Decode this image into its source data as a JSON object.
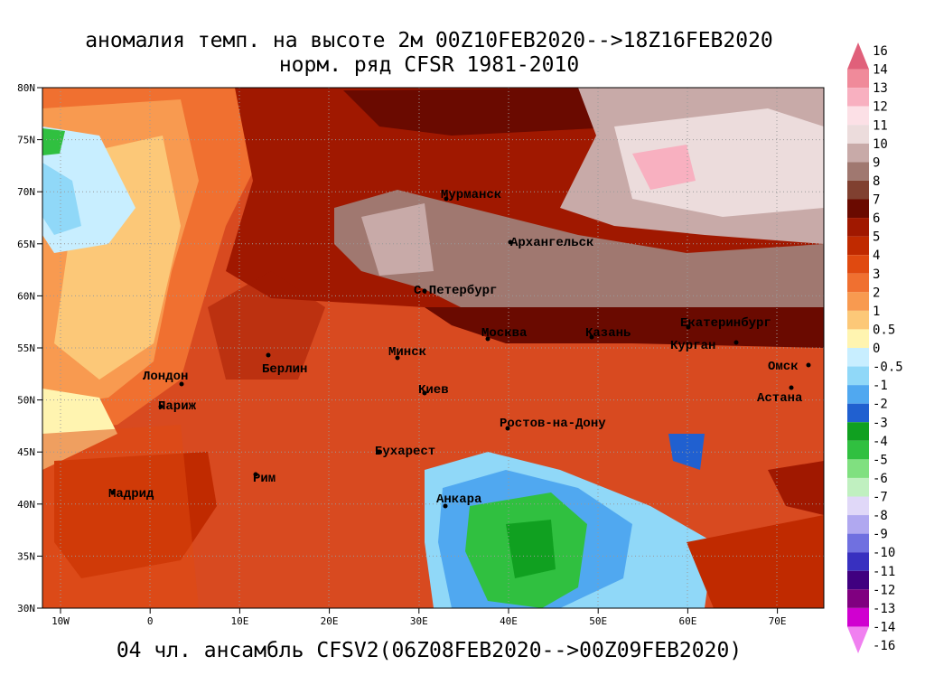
{
  "title": {
    "line1": "аномалия темп. на высоте 2м 00Z10FEB2020-->18Z16FEB2020",
    "line2": "норм. ряд CFSR 1981-2010"
  },
  "footer": "04 чл. ансамбль CFSV2(06Z08FEB2020-->00Z09FEB2020)",
  "lat_labels": [
    "80N",
    "75N",
    "70N",
    "65N",
    "60N",
    "55N",
    "50N",
    "45N",
    "40N",
    "35N",
    "30N"
  ],
  "lon_labels": [
    "10W",
    "0",
    "10E",
    "20E",
    "30E",
    "40E",
    "50E",
    "60E",
    "70E"
  ],
  "cities": [
    "Мурманск",
    "Архангельск",
    "С.Петербург",
    "Москва",
    "Казань",
    "Екатеринбург",
    "Курган",
    "Омск",
    "Астана",
    "Минск",
    "Берлин",
    "Лондон",
    "Париж",
    "Киев",
    "Ростов-на-Дону",
    "Бухарест",
    "Рим",
    "Мадрид",
    "Анкара"
  ],
  "colorbar": {
    "levels": [
      16,
      14,
      13,
      12,
      11,
      10,
      9,
      8,
      7,
      6,
      5,
      4,
      3,
      2,
      1,
      0.5,
      0,
      -0.5,
      -1,
      -2,
      -3,
      -4,
      -5,
      -6,
      -7,
      -8,
      -9,
      -10,
      -11,
      -12,
      -13,
      -14,
      -16
    ],
    "colors": [
      "#e0607a",
      "#f08a9a",
      "#f8b0c0",
      "#fce0e6",
      "#ecdcdc",
      "#c8aaa8",
      "#a07870",
      "#804030",
      "#6a0a00",
      "#a01800",
      "#c02a00",
      "#e04a10",
      "#f07030",
      "#f89a50",
      "#fcc878",
      "#fff4b0",
      "#c8eeff",
      "#90d8f8",
      "#50a8f0",
      "#2060d0",
      "#10a020",
      "#30c040",
      "#80e080",
      "#c0f0c0",
      "#e0d8f8",
      "#b0a8f0",
      "#7070e0",
      "#3830c0",
      "#400080",
      "#800080",
      "#d000d0",
      "#f080f0"
    ]
  }
}
